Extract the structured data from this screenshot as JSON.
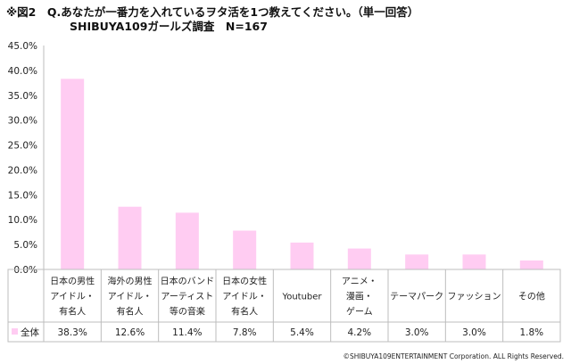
{
  "title_line1": "※図2　Q.あなたが一番力を入れているヲタ活を1つ教えてください。（単一回答）",
  "title_line2": "SHIBUYA109ガールズ調査　N=167",
  "copyright": "©SHIBUYA109ENTERTAINMENT Corporation. ALL Rights Reserved.",
  "bar_color": "#ffccf2",
  "chart_data": {
    "type": "bar",
    "categories": [
      [
        "日本の男性",
        "アイドル・",
        "有名人"
      ],
      [
        "海外の男性",
        "アイドル・",
        "有名人"
      ],
      [
        "日本のバンド",
        "アーティスト",
        "等の音楽"
      ],
      [
        "日本の女性",
        "アイドル・",
        "有名人"
      ],
      [
        "Youtuber"
      ],
      [
        "アニメ・",
        "漫画・",
        "ゲーム"
      ],
      [
        "テーマパーク"
      ],
      [
        "ファッション"
      ],
      [
        "その他"
      ]
    ],
    "series": [
      {
        "name": "全体",
        "values": [
          38.3,
          12.6,
          11.4,
          7.8,
          5.4,
          4.2,
          3.0,
          3.0,
          1.8
        ]
      }
    ],
    "value_labels": [
      "38.3%",
      "12.6%",
      "11.4%",
      "7.8%",
      "5.4%",
      "4.2%",
      "3.0%",
      "3.0%",
      "1.8%"
    ],
    "yticks": [
      "0.0%",
      "5.0%",
      "10.0%",
      "15.0%",
      "20.0%",
      "25.0%",
      "30.0%",
      "35.0%",
      "40.0%",
      "45.0%"
    ],
    "ylim": [
      0,
      45
    ],
    "grid": false
  }
}
